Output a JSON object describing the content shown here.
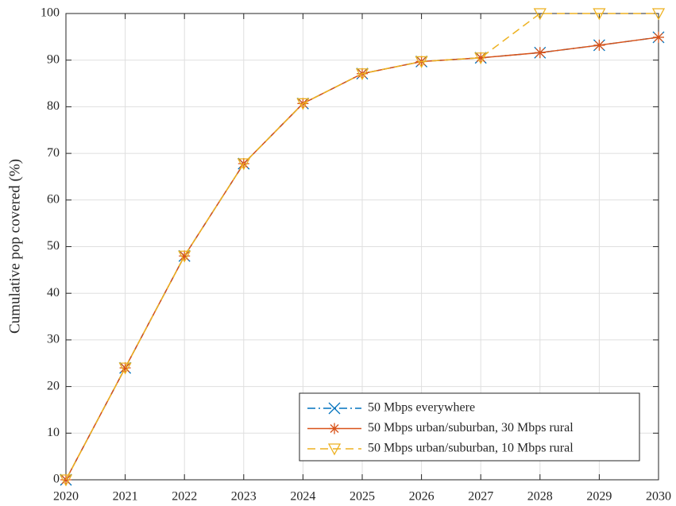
{
  "chart_data": {
    "type": "line",
    "ylabel": "Cumulative pop covered (%)",
    "x": [
      2020,
      2021,
      2022,
      2023,
      2024,
      2025,
      2026,
      2027,
      2028,
      2029,
      2030
    ],
    "xlim": [
      2020,
      2030
    ],
    "xticks": [
      2020,
      2021,
      2022,
      2023,
      2024,
      2025,
      2026,
      2027,
      2028,
      2029,
      2030
    ],
    "ylim": [
      0,
      100
    ],
    "yticks": [
      0,
      10,
      20,
      30,
      40,
      50,
      60,
      70,
      80,
      90,
      100
    ],
    "grid": true,
    "legend_location": "southeast",
    "series": [
      {
        "name": "50 Mbps everywhere",
        "color": "#0072bd",
        "line_style": "dash-dot",
        "marker": "x",
        "values": [
          0,
          24,
          48,
          67.8,
          80.7,
          87.1,
          89.7,
          90.5,
          91.6,
          93.2,
          94.9
        ]
      },
      {
        "name": "50 Mbps urban/suburban, 30 Mbps rural",
        "color": "#d95319",
        "line_style": "solid",
        "marker": "asterisk",
        "values": [
          0,
          24,
          48,
          67.8,
          80.7,
          87.1,
          89.7,
          90.5,
          91.6,
          93.2,
          94.9
        ]
      },
      {
        "name": "50 Mbps urban/suburban, 10 Mbps rural",
        "color": "#edb120",
        "line_style": "dashed",
        "marker": "triangle-down",
        "values": [
          0,
          24,
          48,
          67.8,
          80.7,
          87.1,
          89.7,
          90.5,
          100,
          100,
          100
        ]
      }
    ]
  }
}
